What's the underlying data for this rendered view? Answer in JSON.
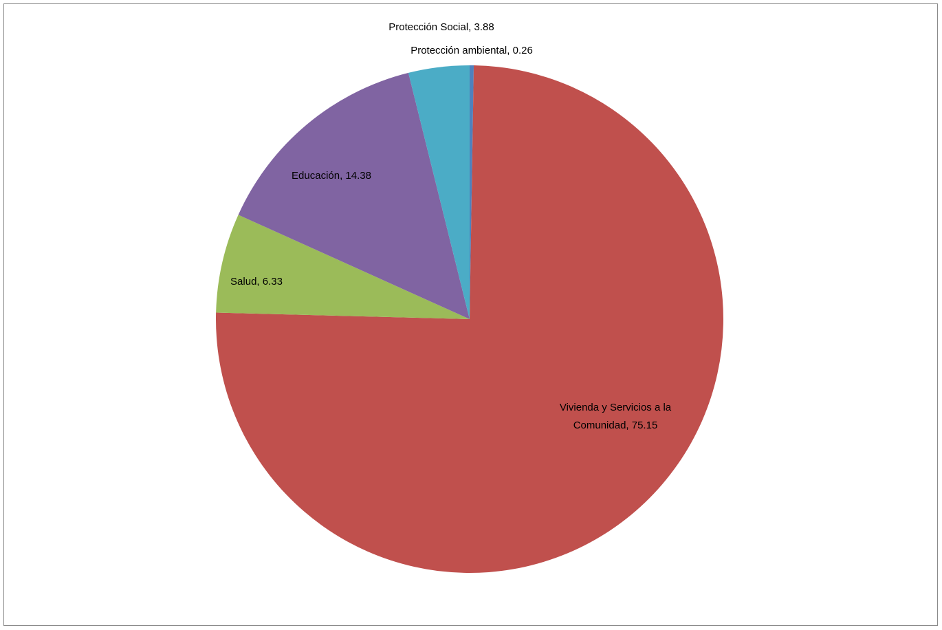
{
  "chart_data": {
    "type": "pie",
    "title": "",
    "categories": [
      "Protección ambiental",
      "Vivienda y Servicios a la Comunidad",
      "Salud",
      "Educación",
      "Protección Social"
    ],
    "values": [
      0.26,
      75.15,
      6.33,
      14.38,
      3.88
    ],
    "colors": [
      "#4f81bd",
      "#c0504d",
      "#9bbb59",
      "#8064a2",
      "#4bacc6"
    ],
    "labels": [
      "Protección ambiental, 0.26",
      "Vivienda y Servicios a la Comunidad, 75.15",
      "Salud, 6.33",
      "Educación, 14.38",
      "Protección Social, 3.88"
    ],
    "start_angle": "12 o'clock",
    "direction": "clockwise",
    "legend": "none"
  }
}
